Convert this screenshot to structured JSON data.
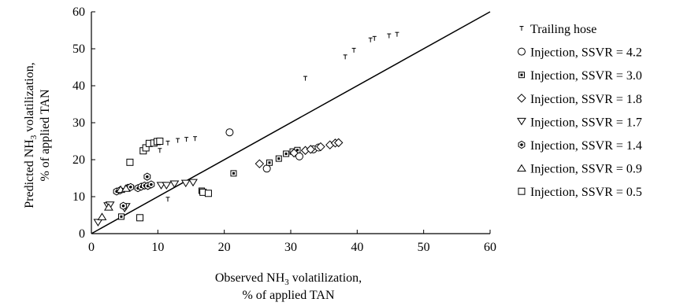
{
  "chart_data": {
    "type": "scatter",
    "xlabel_line1_pre": "Observed NH",
    "xlabel_line1_sub": "3",
    "xlabel_line1_post": " volatilization,",
    "xlabel_line2": "% of applied TAN",
    "ylabel_line1_pre": "Predicted NH",
    "ylabel_line1_sub": "3",
    "ylabel_line1_post": " volatilization,",
    "ylabel_line2": "% of applied TAN",
    "xlim": [
      0,
      60
    ],
    "ylim": [
      0,
      60
    ],
    "xticks": [
      0,
      10,
      20,
      30,
      40,
      50,
      60
    ],
    "yticks": [
      0,
      10,
      20,
      30,
      40,
      50,
      60
    ],
    "xtick_labels": [
      "0",
      "10",
      "20",
      "30",
      "40",
      "50",
      "60"
    ],
    "ytick_labels": [
      "0",
      "10",
      "20",
      "30",
      "40",
      "50",
      "60"
    ],
    "reference_line": {
      "from": [
        0,
        0
      ],
      "to": [
        60,
        60
      ]
    },
    "grid": false,
    "legend_position": "right",
    "series": [
      {
        "name": "Trailing hose",
        "marker": "tee",
        "points": [
          [
            10.3,
            22.5
          ],
          [
            11.5,
            24.5
          ],
          [
            13.0,
            25.2
          ],
          [
            14.3,
            25.5
          ],
          [
            15.6,
            25.7
          ],
          [
            11.5,
            9.3
          ],
          [
            32.2,
            42.0
          ],
          [
            38.2,
            47.8
          ],
          [
            39.5,
            49.6
          ],
          [
            42.0,
            52.4
          ],
          [
            42.6,
            52.8
          ],
          [
            44.8,
            53.5
          ],
          [
            46.0,
            53.9
          ]
        ]
      },
      {
        "name": "Injection, SSVR = 4.2",
        "marker": "circle",
        "points": [
          [
            20.8,
            27.4
          ],
          [
            26.4,
            17.6
          ],
          [
            31.3,
            20.9
          ],
          [
            33.4,
            22.8
          ],
          [
            34.2,
            23.3
          ]
        ]
      },
      {
        "name": "Injection, SSVR = 3.0",
        "marker": "square-dot",
        "points": [
          [
            4.5,
            4.6
          ],
          [
            16.6,
            11.6
          ],
          [
            21.4,
            16.3
          ],
          [
            26.8,
            19.2
          ],
          [
            28.2,
            20.3
          ],
          [
            29.3,
            21.6
          ],
          [
            30.3,
            22.2
          ],
          [
            31.0,
            22.6
          ]
        ]
      },
      {
        "name": "Injection, SSVR = 1.8",
        "marker": "diamond",
        "points": [
          [
            25.3,
            18.9
          ],
          [
            30.5,
            21.8
          ],
          [
            32.2,
            22.5
          ],
          [
            33.0,
            22.8
          ],
          [
            34.5,
            23.5
          ],
          [
            35.9,
            24.0
          ],
          [
            36.7,
            24.5
          ],
          [
            37.2,
            24.6
          ]
        ]
      },
      {
        "name": "Injection, SSVR = 1.7",
        "marker": "triangle-down",
        "points": [
          [
            1.0,
            3.0
          ],
          [
            2.5,
            7.5
          ],
          [
            2.8,
            7.7
          ],
          [
            5.0,
            6.8
          ],
          [
            5.2,
            7.3
          ],
          [
            10.5,
            13.0
          ],
          [
            11.3,
            13.0
          ],
          [
            12.5,
            13.4
          ],
          [
            14.2,
            13.6
          ],
          [
            15.3,
            13.8
          ]
        ]
      },
      {
        "name": "Injection, SSVR = 1.4",
        "marker": "hexagon",
        "points": [
          [
            3.8,
            11.4
          ],
          [
            4.3,
            11.7
          ],
          [
            5.5,
            12.4
          ],
          [
            5.9,
            12.6
          ],
          [
            7.0,
            12.3
          ],
          [
            7.5,
            12.7
          ],
          [
            8.0,
            13.0
          ],
          [
            8.5,
            12.9
          ],
          [
            9.0,
            13.3
          ],
          [
            8.4,
            15.4
          ],
          [
            4.8,
            7.5
          ]
        ]
      },
      {
        "name": "Injection, SSVR = 0.9",
        "marker": "triangle-up",
        "points": [
          [
            1.6,
            4.6
          ],
          [
            2.6,
            7.2
          ],
          [
            4.4,
            12.0
          ],
          [
            5.2,
            12.3
          ]
        ]
      },
      {
        "name": "Injection, SSVR = 0.5",
        "marker": "square",
        "points": [
          [
            5.8,
            19.3
          ],
          [
            7.8,
            22.4
          ],
          [
            8.2,
            23.2
          ],
          [
            8.7,
            24.4
          ],
          [
            9.4,
            24.5
          ],
          [
            9.9,
            24.9
          ],
          [
            10.3,
            25.0
          ],
          [
            7.3,
            4.3
          ],
          [
            16.8,
            11.2
          ],
          [
            17.6,
            10.9
          ]
        ]
      }
    ]
  }
}
